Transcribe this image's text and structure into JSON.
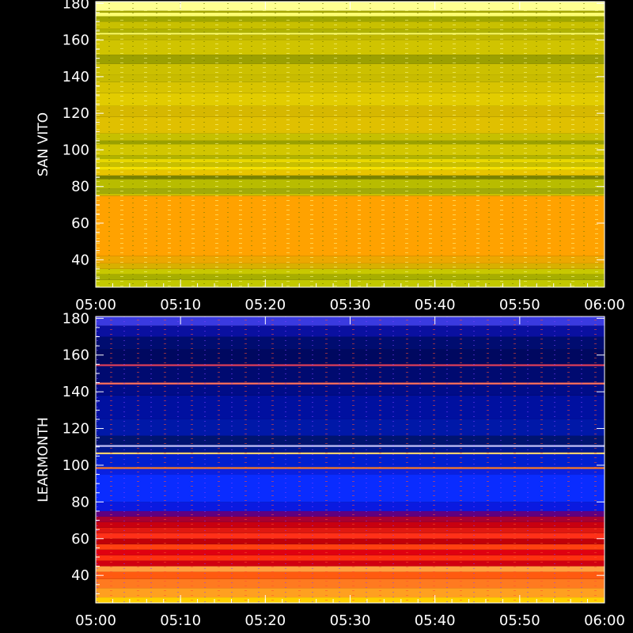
{
  "chart_data": [
    {
      "type": "heatmap",
      "ylabel": "SAN VITO",
      "xlim": [
        "05:00",
        "06:00"
      ],
      "ylim": [
        25,
        181
      ],
      "x_ticks": [
        "05:00",
        "05:10",
        "05:20",
        "05:30",
        "05:40",
        "05:50",
        "06:00"
      ],
      "y_ticks": [
        40,
        60,
        80,
        100,
        120,
        140,
        160,
        180
      ],
      "colormap": [
        "#5a6400",
        "#8a9200",
        "#b8b000",
        "#d2c400",
        "#e8d200",
        "#ffa000",
        "#ffff80"
      ],
      "bands": [
        {
          "from": 25,
          "to": 29,
          "color": "#c2c800"
        },
        {
          "from": 29,
          "to": 32,
          "color": "#a6ae00"
        },
        {
          "from": 32,
          "to": 35,
          "color": "#c8c800"
        },
        {
          "from": 35,
          "to": 38,
          "color": "#d8b000"
        },
        {
          "from": 38,
          "to": 42,
          "color": "#eca800"
        },
        {
          "from": 42,
          "to": 75,
          "color": "#ffa200"
        },
        {
          "from": 75,
          "to": 76,
          "color": "#c8c000"
        },
        {
          "from": 76,
          "to": 79,
          "color": "#a2aa08"
        },
        {
          "from": 79,
          "to": 84,
          "color": "#b8bc00"
        },
        {
          "from": 84,
          "to": 86,
          "color": "#7a8200"
        },
        {
          "from": 86,
          "to": 89,
          "color": "#e8c400"
        },
        {
          "from": 89,
          "to": 91,
          "color": "#f4e000"
        },
        {
          "from": 91,
          "to": 93,
          "color": "#c8c000"
        },
        {
          "from": 93,
          "to": 95,
          "color": "#e8d800"
        },
        {
          "from": 95,
          "to": 97,
          "color": "#b0b200"
        },
        {
          "from": 97,
          "to": 103,
          "color": "#d2c600"
        },
        {
          "from": 103,
          "to": 105,
          "color": "#9aa000"
        },
        {
          "from": 105,
          "to": 109,
          "color": "#c6c000"
        },
        {
          "from": 109,
          "to": 118,
          "color": "#e0c000"
        },
        {
          "from": 118,
          "to": 124,
          "color": "#d6b800"
        },
        {
          "from": 124,
          "to": 131,
          "color": "#e2cc00"
        },
        {
          "from": 131,
          "to": 137,
          "color": "#d8c400"
        },
        {
          "from": 137,
          "to": 141,
          "color": "#c8bc00"
        },
        {
          "from": 141,
          "to": 147,
          "color": "#ccc000"
        },
        {
          "from": 147,
          "to": 152,
          "color": "#9ca000"
        },
        {
          "from": 152,
          "to": 160,
          "color": "#d0c400"
        },
        {
          "from": 160,
          "to": 163,
          "color": "#c0b800"
        },
        {
          "from": 163,
          "to": 164,
          "color": "#ffff60"
        },
        {
          "from": 164,
          "to": 166,
          "color": "#b0b200"
        },
        {
          "from": 166,
          "to": 170,
          "color": "#c8c000"
        },
        {
          "from": 170,
          "to": 173,
          "color": "#a0a600"
        },
        {
          "from": 173,
          "to": 175,
          "color": "#ffff70"
        },
        {
          "from": 175,
          "to": 176,
          "color": "#a8aa00"
        },
        {
          "from": 176,
          "to": 181,
          "color": "#ffff90"
        }
      ]
    },
    {
      "type": "heatmap",
      "ylabel": "LEARMONTH",
      "xlim": [
        "05:00",
        "06:00"
      ],
      "ylim": [
        25,
        181
      ],
      "x_ticks": [
        "05:00",
        "05:10",
        "05:20",
        "05:30",
        "05:40",
        "05:50",
        "06:00"
      ],
      "y_ticks": [
        40,
        60,
        80,
        100,
        120,
        140,
        160,
        180
      ],
      "colormap": [
        "#000050",
        "#0000c0",
        "#0030ff",
        "#8000a0",
        "#ff0000",
        "#ff8000",
        "#ffff00"
      ],
      "bands": [
        {
          "from": 25,
          "to": 28,
          "color": "#ffd000"
        },
        {
          "from": 28,
          "to": 33,
          "color": "#ffa020"
        },
        {
          "from": 33,
          "to": 38,
          "color": "#ff7a20"
        },
        {
          "from": 38,
          "to": 42,
          "color": "#ff5a10"
        },
        {
          "from": 42,
          "to": 45,
          "color": "#ffa040"
        },
        {
          "from": 45,
          "to": 48,
          "color": "#d00010"
        },
        {
          "from": 48,
          "to": 51,
          "color": "#ff3010"
        },
        {
          "from": 51,
          "to": 54,
          "color": "#e00010"
        },
        {
          "from": 54,
          "to": 57,
          "color": "#ff4010"
        },
        {
          "from": 57,
          "to": 60,
          "color": "#c00008"
        },
        {
          "from": 60,
          "to": 63,
          "color": "#ff3018"
        },
        {
          "from": 63,
          "to": 66,
          "color": "#e01810"
        },
        {
          "from": 66,
          "to": 69,
          "color": "#c80010"
        },
        {
          "from": 69,
          "to": 72,
          "color": "#a80030"
        },
        {
          "from": 72,
          "to": 75,
          "color": "#600080"
        },
        {
          "from": 75,
          "to": 80,
          "color": "#0a1ae0"
        },
        {
          "from": 80,
          "to": 95,
          "color": "#0a2cff"
        },
        {
          "from": 95,
          "to": 98,
          "color": "#0a20e0"
        },
        {
          "from": 98,
          "to": 99,
          "color": "#ff8030"
        },
        {
          "from": 99,
          "to": 106,
          "color": "#0020d0"
        },
        {
          "from": 106,
          "to": 107,
          "color": "#ffd070"
        },
        {
          "from": 107,
          "to": 110,
          "color": "#001890"
        },
        {
          "from": 110,
          "to": 111,
          "color": "#c0c0ff"
        },
        {
          "from": 111,
          "to": 116,
          "color": "#001470"
        },
        {
          "from": 116,
          "to": 125,
          "color": "#0018a8"
        },
        {
          "from": 125,
          "to": 138,
          "color": "#0010a0"
        },
        {
          "from": 138,
          "to": 144,
          "color": "#000c88"
        },
        {
          "from": 144,
          "to": 145,
          "color": "#ff7060"
        },
        {
          "from": 145,
          "to": 154,
          "color": "#000a70"
        },
        {
          "from": 154,
          "to": 155,
          "color": "#e04060"
        },
        {
          "from": 155,
          "to": 163,
          "color": "#000860"
        },
        {
          "from": 163,
          "to": 170,
          "color": "#000c70"
        },
        {
          "from": 170,
          "to": 176,
          "color": "#0a10a0"
        },
        {
          "from": 176,
          "to": 181,
          "color": "#3a3ae0"
        }
      ]
    }
  ]
}
